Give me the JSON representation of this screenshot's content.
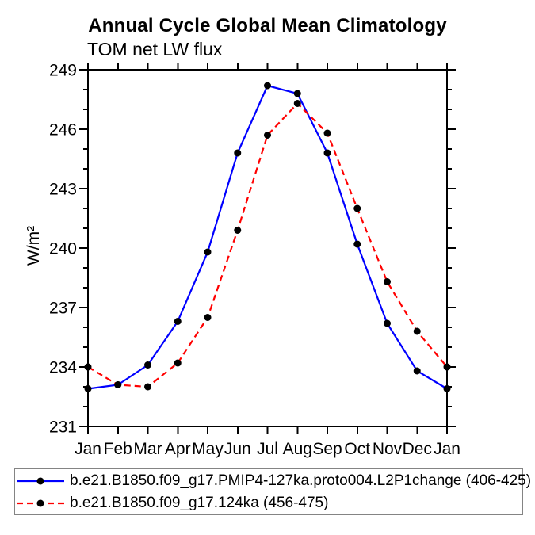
{
  "chart_data": {
    "type": "line",
    "title": "Annual Cycle Global Mean Climatology",
    "subtitle": "TOM net LW flux",
    "ylabel": "W/m²",
    "xlabel": "",
    "categories": [
      "Jan",
      "Feb",
      "Mar",
      "Apr",
      "May",
      "Jun",
      "Jul",
      "Aug",
      "Sep",
      "Oct",
      "Nov",
      "Dec",
      "Jan"
    ],
    "ylim": [
      231,
      249
    ],
    "yticks_major": [
      231,
      234,
      237,
      240,
      243,
      246,
      249
    ],
    "ytick_minor_step": 1,
    "grid": false,
    "legend_position": "bottom-left",
    "axis_color": "#000000",
    "legend_border_color": "#848484",
    "series": [
      {
        "name": "b.e21.B1850.f09_g17.PMIP4-127ka.proto004.L2P1change (406-425)",
        "color": "#0000ff",
        "line_style": "solid",
        "marker": "circle",
        "marker_color": "#000000",
        "values": [
          232.9,
          233.1,
          234.1,
          236.3,
          239.8,
          244.8,
          248.2,
          247.8,
          244.8,
          240.2,
          236.2,
          233.8,
          232.9
        ]
      },
      {
        "name": "b.e21.B1850.f09_g17.124ka (456-475)",
        "color": "#ff0000",
        "line_style": "dashed",
        "marker": "circle",
        "marker_color": "#000000",
        "values": [
          234.0,
          233.1,
          233.0,
          234.2,
          236.5,
          240.9,
          245.7,
          247.3,
          245.8,
          242.0,
          238.3,
          235.8,
          234.0
        ]
      }
    ]
  }
}
